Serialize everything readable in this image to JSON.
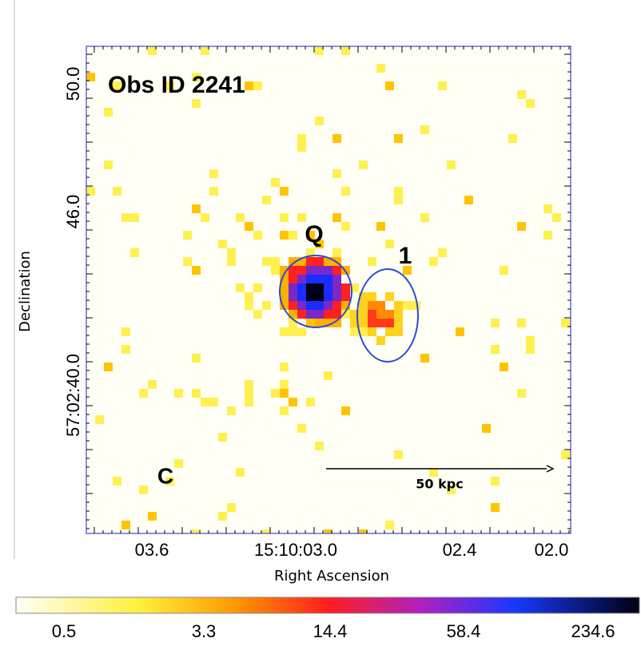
{
  "image": {
    "title": "Obs ID 2241",
    "labels": {
      "q": "Q",
      "one": "1",
      "c": "C"
    },
    "scale_bar": "50 kpc",
    "x_axis": {
      "label": "Right Ascension",
      "ticks": [
        "03.6",
        "15:10:03.0",
        "02.4",
        "02.0"
      ]
    },
    "y_axis": {
      "label": "Declination",
      "ticks": [
        "50.0",
        "46.0",
        "57:02:40.0"
      ]
    },
    "colorbar": {
      "ticks": [
        "0.5",
        "3.3",
        "14.4",
        "58.4",
        "234.6"
      ]
    }
  }
}
